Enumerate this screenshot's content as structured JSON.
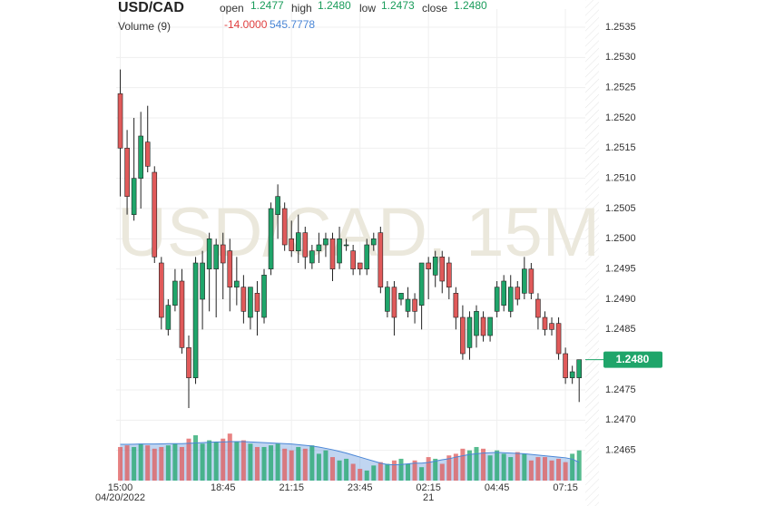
{
  "header": {
    "symbol": "USD/CAD",
    "open_label": "open",
    "open": "1.2477",
    "high_label": "high",
    "high": "1.2480",
    "low_label": "low",
    "low": "1.2473",
    "close_label": "close",
    "close": "1.2480",
    "volume_label": "Volume (9)",
    "volume_change": "-14.0000",
    "volume_ma_value": "545.7778"
  },
  "chart_data": {
    "type": "candlestick",
    "watermark": "USD/CAD, 15M",
    "open": [
      1.2524,
      1.2515,
      1.2504,
      1.251,
      1.2516,
      1.2511,
      1.2496,
      1.2485,
      1.2489,
      1.2493,
      1.2482,
      1.2477,
      1.249,
      1.2495,
      1.2495,
      1.2499,
      1.2498,
      1.2492,
      1.2492,
      1.2487,
      1.2491,
      1.2487,
      1.2495,
      1.2504,
      1.2505,
      1.25,
      1.2498,
      1.2501,
      1.2496,
      1.2498,
      1.2499,
      1.25,
      1.2496,
      1.2499,
      1.2498,
      1.2496,
      1.2495,
      1.2499,
      1.2501,
      1.2488,
      1.2492,
      1.249,
      1.2488,
      1.249,
      1.2489,
      1.2496,
      1.2494,
      1.2497,
      1.2496,
      1.2491,
      1.2487,
      1.2482,
      1.2484,
      1.2487,
      1.2484,
      1.2488,
      1.2489,
      1.2488,
      1.2492,
      1.2491,
      1.2495,
      1.249,
      1.2487,
      1.2486,
      1.2486,
      1.2481,
      1.2477,
      1.2477
    ],
    "high": [
      1.2528,
      1.2518,
      1.252,
      1.2521,
      1.2522,
      1.2512,
      1.2497,
      1.249,
      1.2495,
      1.2495,
      1.2484,
      1.2497,
      1.2498,
      1.2501,
      1.25,
      1.2501,
      1.25,
      1.2497,
      1.2494,
      1.2492,
      1.2493,
      1.2495,
      1.2506,
      1.2509,
      1.2506,
      1.2503,
      1.2504,
      1.2502,
      1.2499,
      1.2501,
      1.2501,
      1.2501,
      1.2502,
      1.25,
      1.2499,
      1.2496,
      1.25,
      1.2501,
      1.2502,
      1.2493,
      1.2493,
      1.2491,
      1.2492,
      1.2491,
      1.2496,
      1.2497,
      1.2498,
      1.2498,
      1.2497,
      1.2492,
      1.2489,
      1.2488,
      1.2489,
      1.2488,
      1.2487,
      1.2493,
      1.2494,
      1.2494,
      1.2493,
      1.2497,
      1.2496,
      1.2491,
      1.2488,
      1.2487,
      1.2487,
      1.2482,
      1.2479,
      1.248
    ],
    "low": [
      1.2507,
      1.2504,
      1.2503,
      1.2505,
      1.2511,
      1.2496,
      1.2485,
      1.2484,
      1.2488,
      1.2481,
      1.2472,
      1.2476,
      1.2485,
      1.2488,
      1.2487,
      1.249,
      1.2488,
      1.2489,
      1.2486,
      1.2485,
      1.2484,
      1.2486,
      1.2494,
      1.25,
      1.2498,
      1.2497,
      1.2496,
      1.2495,
      1.2495,
      1.2496,
      1.2497,
      1.2493,
      1.2495,
      1.2498,
      1.2494,
      1.2494,
      1.2494,
      1.2498,
      1.2491,
      1.2487,
      1.2484,
      1.2489,
      1.2487,
      1.2486,
      1.2485,
      1.249,
      1.2492,
      1.2491,
      1.249,
      1.2485,
      1.248,
      1.248,
      1.2482,
      1.2483,
      1.2483,
      1.2487,
      1.2488,
      1.2487,
      1.2489,
      1.249,
      1.249,
      1.2485,
      1.2484,
      1.2484,
      1.248,
      1.2476,
      1.2476,
      1.2473
    ],
    "close": [
      1.2515,
      1.2507,
      1.251,
      1.2517,
      1.2512,
      1.2497,
      1.2487,
      1.2489,
      1.2493,
      1.2482,
      1.2477,
      1.2496,
      1.2496,
      1.25,
      1.2499,
      1.2496,
      1.2492,
      1.2493,
      1.2488,
      1.2492,
      1.2488,
      1.2494,
      1.2505,
      1.2507,
      1.2499,
      1.2498,
      1.2501,
      1.2497,
      1.2498,
      1.2499,
      1.25,
      1.2495,
      1.25,
      1.2499,
      1.2495,
      1.2495,
      1.2499,
      1.25,
      1.2492,
      1.2492,
      1.2487,
      1.2491,
      1.249,
      1.2488,
      1.2496,
      1.2495,
      1.2497,
      1.2493,
      1.2492,
      1.2487,
      1.2481,
      1.2487,
      1.2488,
      1.2484,
      1.2487,
      1.2492,
      1.2493,
      1.2492,
      1.249,
      1.2495,
      1.2491,
      1.2487,
      1.2485,
      1.2485,
      1.2481,
      1.2477,
      1.2478,
      1.248
    ],
    "volume": [
      1000,
      1050,
      1000,
      1100,
      1050,
      950,
      1000,
      1050,
      1100,
      1000,
      1250,
      1350,
      1100,
      1200,
      1150,
      1250,
      1400,
      1150,
      1200,
      1100,
      1000,
      1000,
      1050,
      1100,
      950,
      900,
      1000,
      950,
      1050,
      800,
      900,
      700,
      600,
      650,
      500,
      350,
      300,
      450,
      550,
      500,
      600,
      650,
      500,
      600,
      400,
      700,
      650,
      500,
      750,
      800,
      950,
      900,
      1000,
      950,
      750,
      900,
      800,
      700,
      850,
      800,
      600,
      700,
      700,
      600,
      650,
      550,
      800,
      900
    ],
    "volume_ma": [
      1080,
      1080,
      1085,
      1090,
      1090,
      1090,
      1095,
      1100,
      1100,
      1100,
      1110,
      1120,
      1130,
      1140,
      1150,
      1150,
      1160,
      1160,
      1160,
      1150,
      1140,
      1130,
      1120,
      1110,
      1100,
      1090,
      1070,
      1050,
      1030,
      1000,
      960,
      920,
      870,
      820,
      760,
      700,
      640,
      580,
      520,
      480,
      470,
      480,
      500,
      520,
      520,
      540,
      580,
      620,
      650,
      700,
      740,
      780,
      800,
      820,
      830,
      840,
      830,
      820,
      810,
      800,
      780,
      760,
      740,
      720,
      700,
      680,
      640,
      545.7778
    ],
    "up_color": "#1fa56a",
    "down_color": "#e05a5a",
    "ma_color": "#4a86d6",
    "last_price": {
      "value": 1.248,
      "label": "1.2480"
    },
    "ylim": [
      1.246,
      1.2538
    ],
    "volume_ylim": [
      0,
      2700
    ],
    "xlim": [
      -0.6,
      67.9
    ],
    "yticks": [
      1.2465,
      {
        "value": 1.247,
        "label": "1.2470"
      },
      1.2475,
      {
        "value": 1.248,
        "label": "1.2480"
      },
      1.2485,
      {
        "value": 1.249,
        "label": "1.2490"
      },
      1.2495,
      {
        "value": 1.25,
        "label": "1.2500"
      },
      1.2505,
      {
        "value": 1.251,
        "label": "1.2510"
      },
      1.2515,
      {
        "value": 1.252,
        "label": "1.2520"
      },
      1.2525,
      {
        "value": 1.253,
        "label": "1.2530"
      },
      1.2535
    ],
    "xticks": [
      {
        "value": 0,
        "label": "15:00"
      },
      {
        "value": 15,
        "label": "18:45"
      },
      {
        "value": 25,
        "label": "21:15"
      },
      {
        "value": 35,
        "label": "23:45"
      },
      {
        "value": 45,
        "label": "02:15"
      },
      {
        "value": 55,
        "label": "04:45"
      },
      {
        "value": 65,
        "label": "07:15"
      }
    ],
    "date_labels": [
      {
        "value": 0,
        "label": "04/20/2022"
      },
      {
        "value": 45,
        "label": "21"
      }
    ],
    "grid": true
  }
}
